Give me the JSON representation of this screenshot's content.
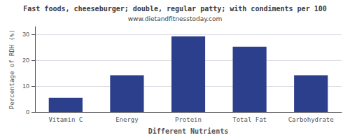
{
  "chart_data": {
    "type": "bar",
    "title": "Fast foods, cheeseburger; double, regular patty; with condiments per 100",
    "subtitle": "www.dietandfitnesstoday.com",
    "xlabel": "Different Nutrients",
    "ylabel": "Percentage of RDH (%)",
    "categories": [
      "Vitamin C",
      "Energy",
      "Protein",
      "Total Fat",
      "Carbohydrate"
    ],
    "values": [
      5.5,
      14.2,
      29.2,
      25.2,
      14.2
    ],
    "color": "#2b3f8c",
    "ylim": [
      0,
      33
    ],
    "yticks": [
      0,
      10,
      20,
      30
    ],
    "grid": true
  }
}
